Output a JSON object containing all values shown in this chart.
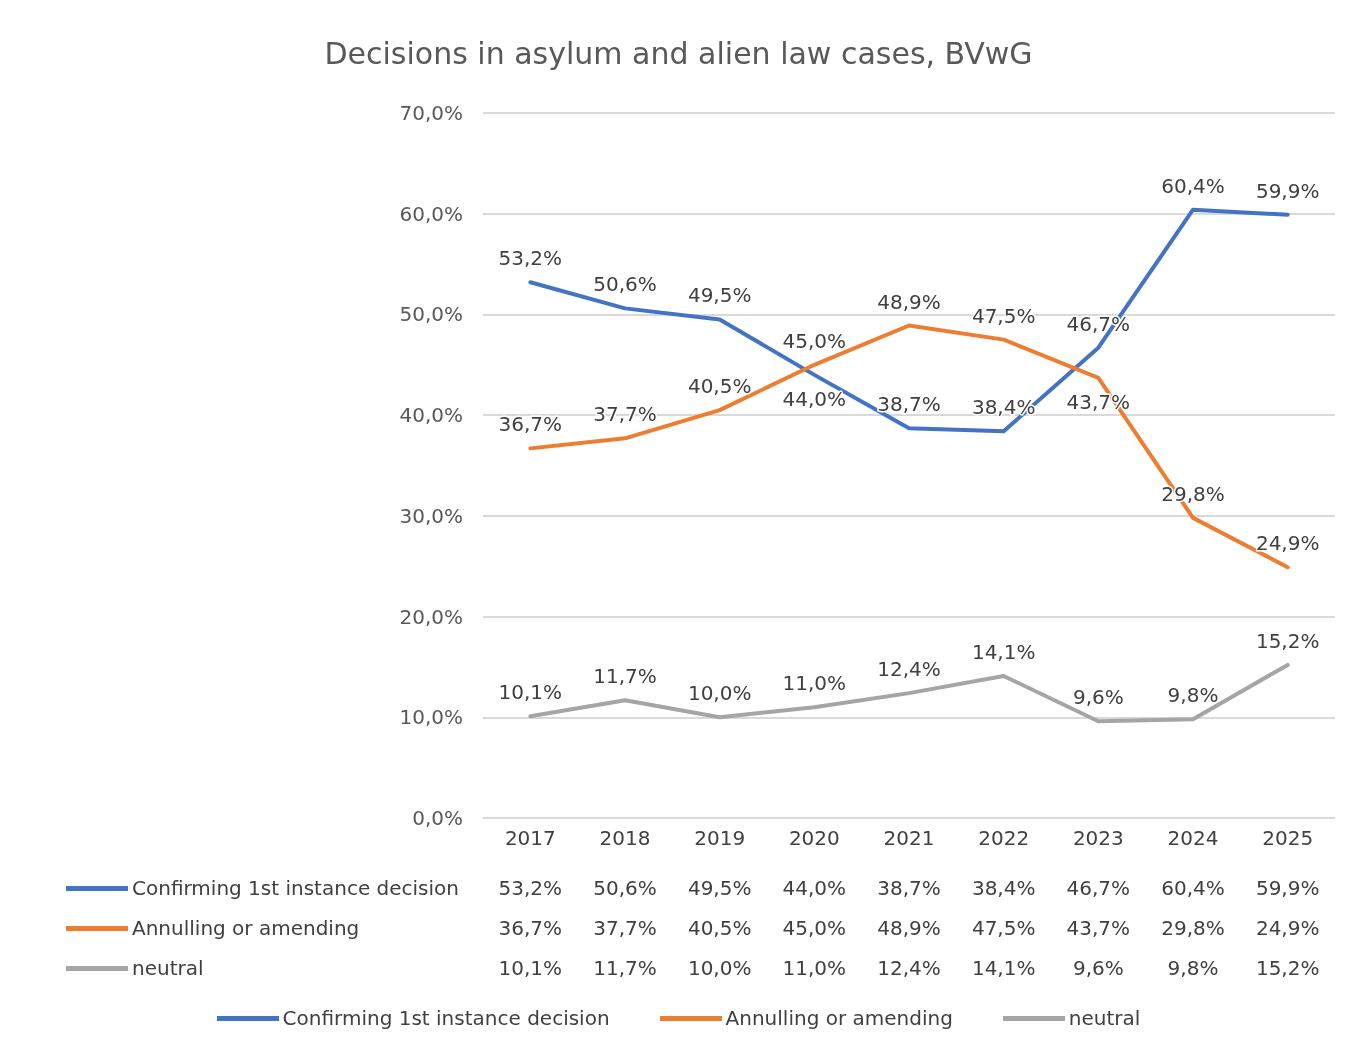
{
  "chart_data": {
    "type": "line",
    "title": "Decisions in asylum and alien law cases, BVwG",
    "categories": [
      "2017",
      "2018",
      "2019",
      "2020",
      "2021",
      "2022",
      "2023",
      "2024",
      "2025"
    ],
    "series": [
      {
        "name": "Confirming 1st instance decision",
        "color": "#4472c4",
        "values": [
          53.2,
          50.6,
          49.5,
          44.0,
          38.7,
          38.4,
          46.7,
          60.4,
          59.9
        ],
        "value_labels": [
          "53,2%",
          "50,6%",
          "49,5%",
          "44,0%",
          "38,7%",
          "38,4%",
          "46,7%",
          "60,4%",
          "59,9%"
        ]
      },
      {
        "name": "Annulling or amending",
        "color": "#ed7d31",
        "values": [
          36.7,
          37.7,
          40.5,
          45.0,
          48.9,
          47.5,
          43.7,
          29.8,
          24.9
        ],
        "value_labels": [
          "36,7%",
          "37,7%",
          "40,5%",
          "45,0%",
          "48,9%",
          "47,5%",
          "43,7%",
          "29,8%",
          "24,9%"
        ]
      },
      {
        "name": "neutral",
        "color": "#a5a5a5",
        "values": [
          10.1,
          11.7,
          10.0,
          11.0,
          12.4,
          14.1,
          9.6,
          9.8,
          15.2
        ],
        "value_labels": [
          "10,1%",
          "11,7%",
          "10,0%",
          "11,0%",
          "12,4%",
          "14,1%",
          "9,6%",
          "9,8%",
          "15,2%"
        ]
      }
    ],
    "ylim": [
      0,
      70
    ],
    "yticks": [
      {
        "value": 0,
        "label": "0,0%"
      },
      {
        "value": 10,
        "label": "10,0%"
      },
      {
        "value": 20,
        "label": "20,0%"
      },
      {
        "value": 30,
        "label": "30,0%"
      },
      {
        "value": 40,
        "label": "40,0%"
      },
      {
        "value": 50,
        "label": "50,0%"
      },
      {
        "value": 60,
        "label": "60,0%"
      },
      {
        "value": 70,
        "label": "70,0%"
      }
    ],
    "grid": "y",
    "legend": "bottom",
    "marker": "none",
    "line_style": "solid"
  }
}
